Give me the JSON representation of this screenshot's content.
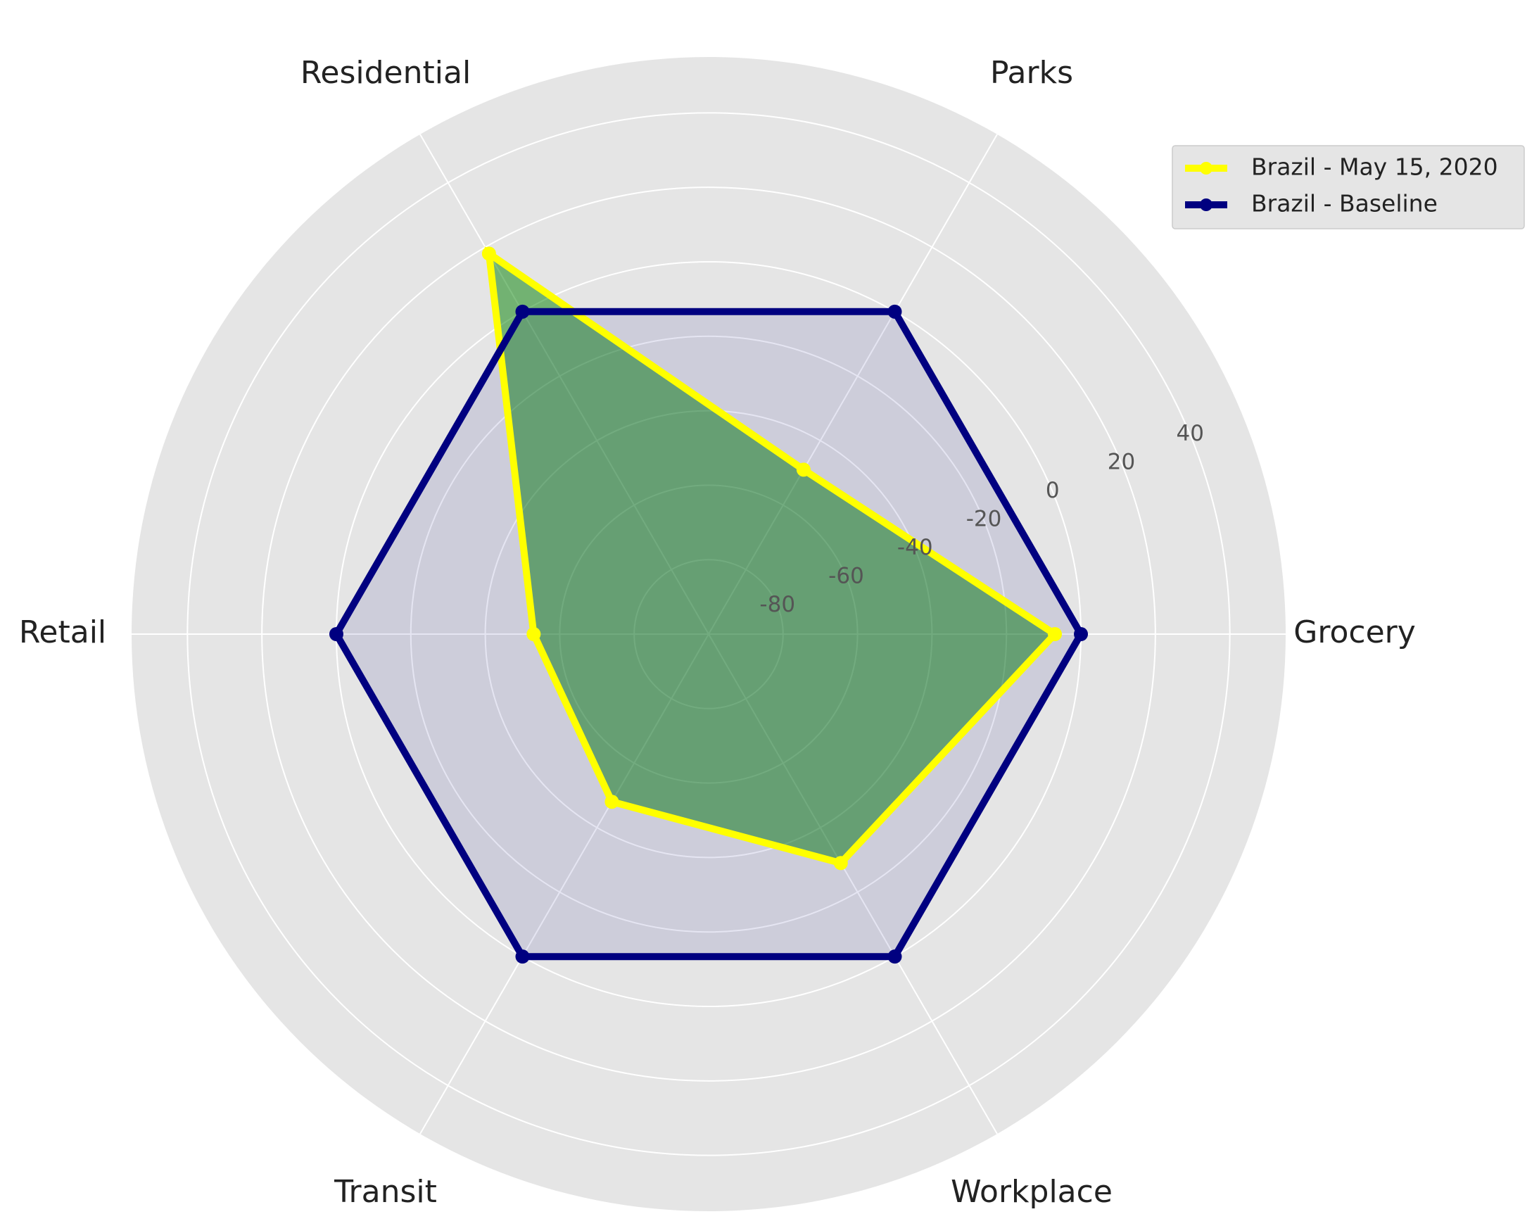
{
  "chart_data": {
    "type": "radar",
    "categories": [
      "Grocery",
      "Parks",
      "Residential",
      "Retail",
      "Transit",
      "Workplace"
    ],
    "series": [
      {
        "name": "Brazil - May 15, 2020",
        "color": "#ffff00",
        "fill_color": "#008000",
        "values": [
          -7,
          -49,
          18,
          -53,
          -48,
          -29
        ]
      },
      {
        "name": "Brazil - Baseline",
        "color": "#000080",
        "fill_color": "#000080",
        "values": [
          0,
          0,
          0,
          0,
          0,
          0
        ]
      }
    ],
    "ylim": [
      -100,
      55
    ],
    "yticks": [
      -80,
      -60,
      -40,
      -20,
      0,
      20,
      40
    ],
    "grid": true,
    "legend": "upper right"
  }
}
